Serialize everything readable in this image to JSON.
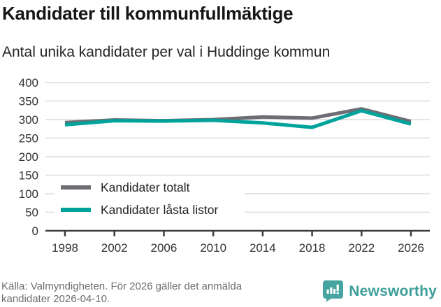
{
  "header": {
    "title": "Kandidater till kommunfullmäktige",
    "subtitle": "Antal unika kandidater per val i Huddinge kommun"
  },
  "chart_data": {
    "type": "line",
    "categories": [
      "1998",
      "2002",
      "2006",
      "2010",
      "2014",
      "2018",
      "2022",
      "2026"
    ],
    "series": [
      {
        "name": "Kandidater totalt",
        "color": "#6d6d74",
        "values": [
          292,
          299,
          297,
          300,
          307,
          304,
          329,
          295
        ]
      },
      {
        "name": "Kandidater låsta listor",
        "color": "#00a39b",
        "values": [
          286,
          297,
          296,
          298,
          291,
          279,
          324,
          288
        ]
      }
    ],
    "ylim": [
      0,
      400
    ],
    "ytick_step": 50,
    "yticks": [
      0,
      50,
      100,
      150,
      200,
      250,
      300,
      350,
      400
    ],
    "grid": true,
    "legend_position": "inside-left-bottom",
    "colors": {
      "gridline": "#e4e4e4",
      "axis_line": "#3d3d3d",
      "tick_label": "#333333",
      "legend_text": "#222222"
    }
  },
  "footer": {
    "source_line1": "Källa: Valmyndigheten. För 2026 gäller det anmälda",
    "source_line2": "kandidater 2026-04-10.",
    "brand": "Newsworthy",
    "brand_color": "#3d9e99",
    "logo_icon": "newsworthy-speech-bubble-bar-chart-icon"
  }
}
